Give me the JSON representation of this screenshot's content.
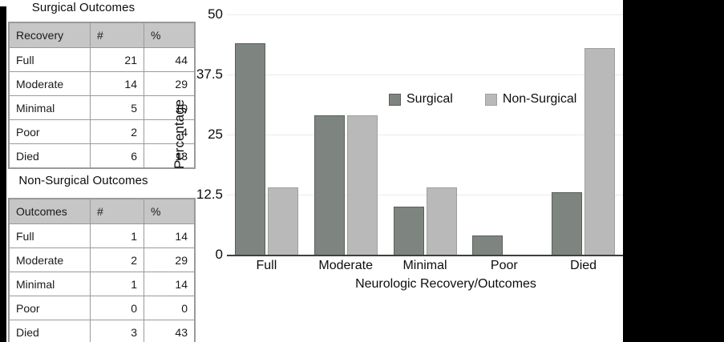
{
  "left_panel": {
    "surgical": {
      "title": "Surgical Outcomes",
      "columns": [
        "Recovery",
        "#",
        "%"
      ],
      "rows": [
        [
          "Full",
          "21",
          "44"
        ],
        [
          "Moderate",
          "14",
          "29"
        ],
        [
          "Minimal",
          "5",
          "10"
        ],
        [
          "Poor",
          "2",
          "4"
        ],
        [
          "Died",
          "6",
          "13"
        ]
      ]
    },
    "non_surgical": {
      "title": "Non-Surgical Outcomes",
      "columns": [
        "Outcomes",
        "#",
        "%"
      ],
      "rows": [
        [
          "Full",
          "1",
          "14"
        ],
        [
          "Moderate",
          "2",
          "29"
        ],
        [
          "Minimal",
          "1",
          "14"
        ],
        [
          "Poor",
          "0",
          "0"
        ],
        [
          "Died",
          "3",
          "43"
        ]
      ]
    }
  },
  "chart_data": {
    "type": "bar",
    "categories": [
      "Full",
      "Moderate",
      "Minimal",
      "Poor",
      "Died"
    ],
    "series": [
      {
        "name": "Surgical",
        "values": [
          44,
          29,
          10,
          4,
          13
        ],
        "color": "#7e8581",
        "border": "#596059"
      },
      {
        "name": "Non-Surgical",
        "values": [
          14,
          29,
          14,
          0,
          43
        ],
        "color": "#b9b9b9",
        "border": "#9f9f9f"
      }
    ],
    "title": "",
    "xlabel": "Neurologic Recovery/Outcomes",
    "ylabel": "Percentage",
    "yticks": [
      0,
      12.5,
      25,
      37.5,
      50
    ],
    "ylim": [
      0,
      50
    ],
    "grid": true,
    "legend_position": "inside-top-right",
    "gridline_color": "#ebebeb",
    "axis_line_color": "#3f3f3f"
  }
}
